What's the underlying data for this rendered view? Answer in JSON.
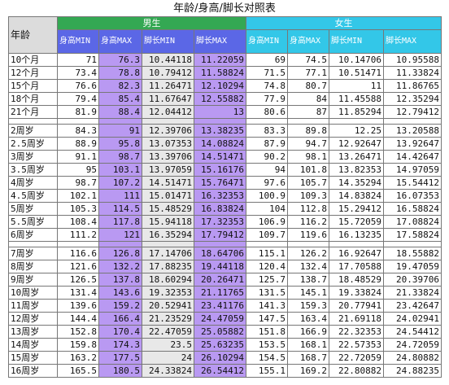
{
  "title": "年龄/身高/脚长对照表",
  "groups": {
    "boy": "男生",
    "girl": "女生"
  },
  "age_header": "年龄",
  "columns": [
    "身高MIN",
    "身高MAX",
    "脚长MIN",
    "脚长MAX",
    "身高MIN",
    "身高MAX",
    "脚长MIN",
    "脚长MAX"
  ],
  "sections": [
    [
      [
        "10个月",
        "71",
        "76.3",
        "10.44118",
        "11.22059",
        "69",
        "74.5",
        "10.14706",
        "10.95588"
      ],
      [
        "12个月",
        "73.4",
        "78.8",
        "10.79412",
        "11.58824",
        "71.5",
        "77.1",
        "10.51471",
        "11.33824"
      ],
      [
        "15个月",
        "76.6",
        "82.3",
        "11.26471",
        "12.10294",
        "74.8",
        "80.7",
        "11",
        "11.86765"
      ],
      [
        "18个月",
        "79.4",
        "85.4",
        "11.67647",
        "12.55882",
        "77.9",
        "84",
        "11.45588",
        "12.35294"
      ],
      [
        "21个月",
        "81.9",
        "88.4",
        "12.04412",
        "13",
        "80.6",
        "87",
        "11.85294",
        "12.79412"
      ]
    ],
    [
      [
        "2周岁",
        "84.3",
        "91",
        "12.39706",
        "13.38235",
        "83.3",
        "89.8",
        "12.25",
        "13.20588"
      ],
      [
        "2.5周岁",
        "88.9",
        "95.8",
        "13.07353",
        "14.08824",
        "87.9",
        "94.7",
        "12.92647",
        "13.92647"
      ],
      [
        "3周岁",
        "91.1",
        "98.7",
        "13.39706",
        "14.51471",
        "90.2",
        "98.1",
        "13.26471",
        "14.42647"
      ],
      [
        "3.5周岁",
        "95",
        "103.1",
        "13.97059",
        "15.16176",
        "94",
        "101.8",
        "13.82353",
        "14.97059"
      ],
      [
        "4周岁",
        "98.7",
        "107.2",
        "14.51471",
        "15.76471",
        "97.6",
        "105.7",
        "14.35294",
        "15.54412"
      ],
      [
        "4.5周岁",
        "102.1",
        "111",
        "15.01471",
        "16.32353",
        "100.9",
        "109.3",
        "14.83824",
        "16.07353"
      ],
      [
        "5周岁",
        "105.3",
        "114.5",
        "15.48529",
        "16.83824",
        "104",
        "112.8",
        "15.29412",
        "16.58824"
      ],
      [
        "5.5周岁",
        "108.4",
        "117.8",
        "15.94118",
        "17.32353",
        "106.9",
        "116.2",
        "15.72059",
        "17.08824"
      ],
      [
        "6周岁",
        "111.2",
        "121",
        "16.35294",
        "17.79412",
        "109.7",
        "119.6",
        "16.13235",
        "17.58824"
      ]
    ],
    [
      [
        "7周岁",
        "116.6",
        "126.8",
        "17.14706",
        "18.64706",
        "115.1",
        "126.2",
        "16.92647",
        "18.55882"
      ],
      [
        "8周岁",
        "121.6",
        "132.2",
        "17.88235",
        "19.44118",
        "120.4",
        "132.4",
        "17.70588",
        "19.47059"
      ],
      [
        "9周岁",
        "126.5",
        "137.8",
        "18.60294",
        "20.26471",
        "125.7",
        "138.7",
        "18.48529",
        "20.39706"
      ],
      [
        "10周岁",
        "131.4",
        "143.6",
        "19.32353",
        "21.11765",
        "131.5",
        "145.1",
        "19.33824",
        "21.33824"
      ],
      [
        "11周岁",
        "139.6",
        "159.2",
        "20.52941",
        "23.41176",
        "141.3",
        "159.3",
        "20.77941",
        "23.42647"
      ],
      [
        "12周岁",
        "144.4",
        "166.4",
        "21.23529",
        "24.47059",
        "147.5",
        "163.4",
        "21.69118",
        "24.02941"
      ],
      [
        "13周岁",
        "152.8",
        "170.4",
        "22.47059",
        "25.05882",
        "151.8",
        "166.9",
        "22.32353",
        "24.54412"
      ],
      [
        "14周岁",
        "159.8",
        "174.3",
        "23.5",
        "25.63235",
        "153.5",
        "168.1",
        "22.57353",
        "24.72059"
      ],
      [
        "15周岁",
        "163.2",
        "177.5",
        "24",
        "26.10294",
        "154.5",
        "168.7",
        "22.72059",
        "24.80882"
      ],
      [
        "16周岁",
        "165.5",
        "180.5",
        "24.33824",
        "26.54412",
        "155.1",
        "169.2",
        "22.80882",
        "24.88235"
      ]
    ]
  ]
}
